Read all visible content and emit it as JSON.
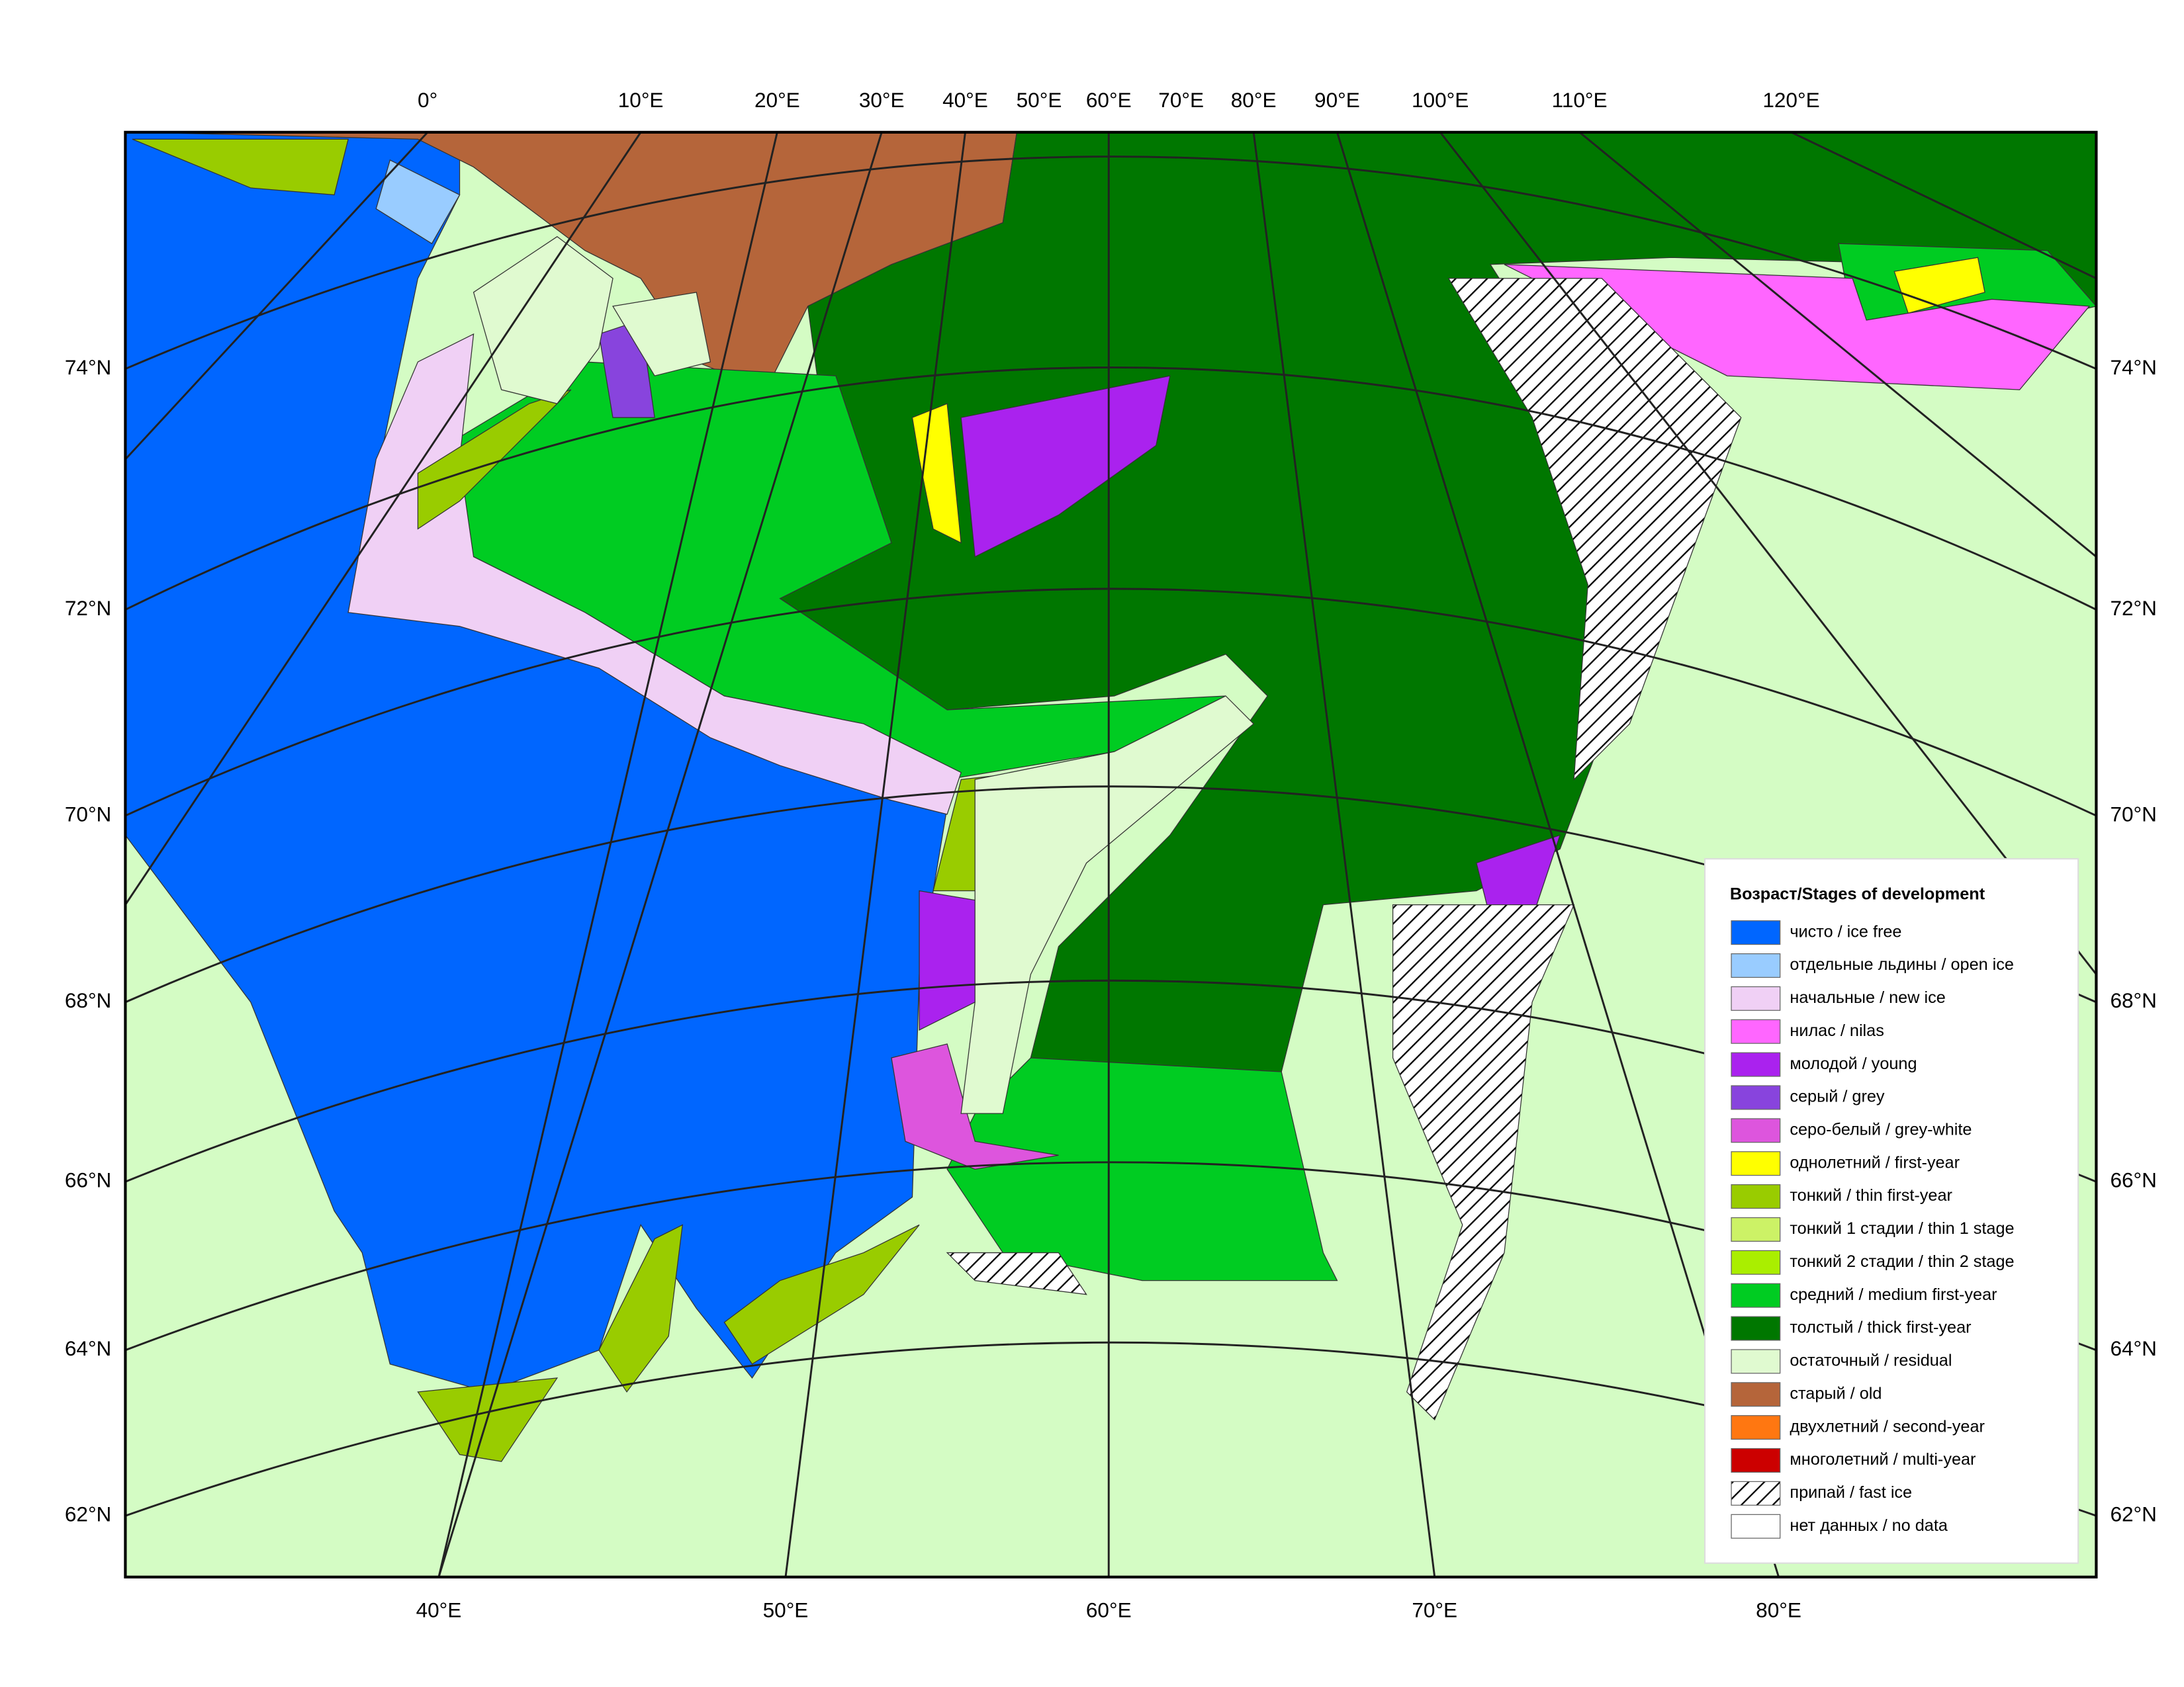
{
  "top_labels": [
    "0°",
    "10°E",
    "20°E",
    "30°E",
    "40°E",
    "50°E",
    "60°E",
    "70°E",
    "80°E",
    "90°E",
    "100°E",
    "110°E",
    "120°E"
  ],
  "bottom_labels": [
    "40°E",
    "50°E",
    "60°E",
    "70°E",
    "80°E"
  ],
  "left_labels": [
    "74°N",
    "72°N",
    "70°N",
    "68°N",
    "66°N",
    "64°N",
    "62°N"
  ],
  "right_labels": [
    "74°N",
    "72°N",
    "70°N",
    "68°N",
    "66°N",
    "64°N",
    "62°N"
  ],
  "legend": {
    "title": "Возраст/Stages of development",
    "items": [
      {
        "label": "чисто / ice free",
        "color": "#0066ff"
      },
      {
        "label": "отдельные льдины / open ice",
        "color": "#99ccff"
      },
      {
        "label": "начальные / new ice",
        "color": "#f0d0f5"
      },
      {
        "label": "нилас / nilas",
        "color": "#ff66ff"
      },
      {
        "label": "молодой / young",
        "color": "#aa22ee"
      },
      {
        "label": "серый / grey",
        "color": "#8844dd"
      },
      {
        "label": "серо-белый / grey-white",
        "color": "#dd55dd"
      },
      {
        "label": "однолетний / first-year",
        "color": "#ffff00"
      },
      {
        "label": "тонкий / thin first-year",
        "color": "#99cc00"
      },
      {
        "label": "тонкий 1 стадии / thin 1 stage",
        "color": "#ccf266"
      },
      {
        "label": "тонкий 2 стадии / thin 2 stage",
        "color": "#aaee00"
      },
      {
        "label": "средний / medium first-year",
        "color": "#00cc22"
      },
      {
        "label": "толстый / thick first-year",
        "color": "#007700"
      },
      {
        "label": "остаточный / residual",
        "color": "#e0fad0"
      },
      {
        "label": "старый / old",
        "color": "#b5653a"
      },
      {
        "label": "двухлетний / second-year",
        "color": "#ff7711"
      },
      {
        "label": "многолетний / multi-year",
        "color": "#cc0000"
      },
      {
        "label": "припай / fast ice",
        "color": "#ffffff",
        "hatch": true
      },
      {
        "label": "нет данных / no data",
        "color": "#ffffff"
      }
    ]
  }
}
